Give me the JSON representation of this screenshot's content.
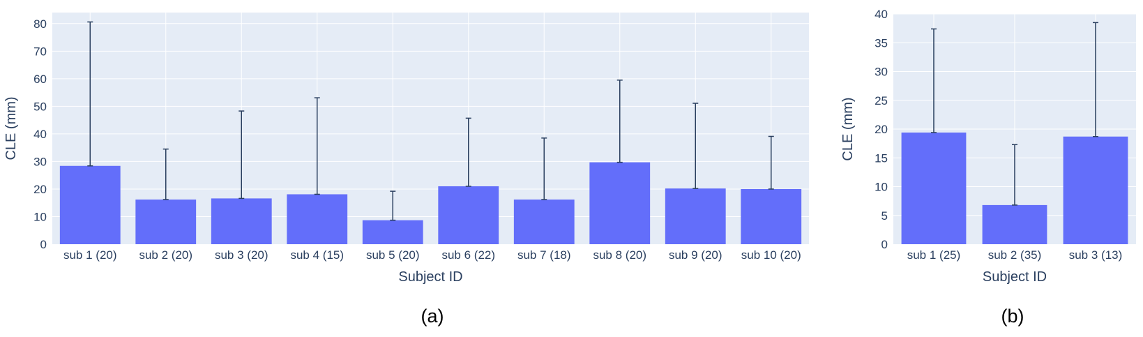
{
  "chart_data": [
    {
      "type": "bar",
      "panel_label": "(a)",
      "xlabel": "Subject ID",
      "ylabel": "CLE (mm)",
      "ylim": [
        0,
        84
      ],
      "yticks": [
        0,
        10,
        20,
        30,
        40,
        50,
        60,
        70,
        80
      ],
      "grid": true,
      "legend": "none",
      "categories": [
        "sub 1 (20)",
        "sub 2 (20)",
        "sub 3 (20)",
        "sub 4 (15)",
        "sub 5 (20)",
        "sub 6 (22)",
        "sub 7 (18)",
        "sub 8 (20)",
        "sub 9 (20)",
        "sub 10 (20)"
      ],
      "values": [
        28.4,
        16.2,
        16.6,
        18.1,
        8.7,
        21.0,
        16.2,
        29.7,
        20.2,
        20.0
      ],
      "error_upper": [
        80.6,
        34.5,
        48.3,
        53.1,
        19.2,
        45.7,
        38.5,
        59.5,
        51.1,
        39.1
      ]
    },
    {
      "type": "bar",
      "panel_label": "(b)",
      "xlabel": "Subject ID",
      "ylabel": "CLE (mm)",
      "ylim": [
        0,
        40
      ],
      "yticks": [
        0,
        5,
        10,
        15,
        20,
        25,
        30,
        35,
        40
      ],
      "grid": true,
      "legend": "none",
      "categories": [
        "sub 1 (25)",
        "sub 2 (35)",
        "sub 3 (13)"
      ],
      "values": [
        19.4,
        6.8,
        18.7
      ],
      "error_upper": [
        37.4,
        17.3,
        38.5
      ]
    }
  ],
  "colors": {
    "plot_background": "#e5ecf6",
    "gridline": "#ffffff",
    "bar": "#636efa",
    "error_bar": "#2a3f5f",
    "text": "#2a3f5f",
    "caption": "#000000"
  }
}
